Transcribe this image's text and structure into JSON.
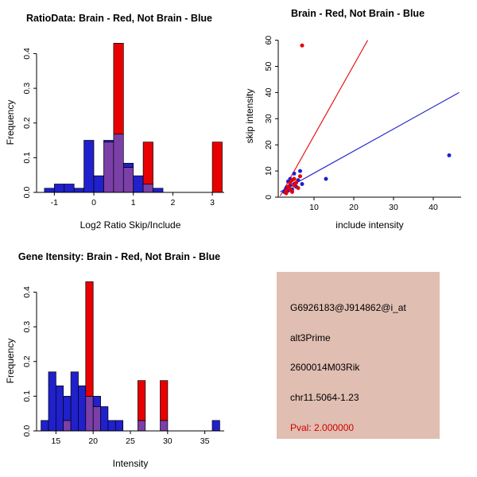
{
  "colors": {
    "red": "#E80000",
    "blue": "#2020CC",
    "overlap": "#7B3FA8",
    "background": "#FFFFFF",
    "info_box_bg": "#E0BEB1"
  },
  "chart_data": [
    {
      "id": "ratio-hist",
      "type": "bar",
      "title": "RatioData: Brain - Red, Not Brain - Blue",
      "xlabel": "Log2 Ratio Skip/Include",
      "ylabel": "Frequency",
      "xlim": [
        -1.45,
        3.3
      ],
      "ylim": [
        0,
        0.44
      ],
      "xticks": [
        -1,
        0,
        1,
        2,
        3
      ],
      "xtick_labels": [
        "-1",
        "0",
        "1",
        "2",
        "3"
      ],
      "yticks": [
        0,
        0.1,
        0.2,
        0.3,
        0.4
      ],
      "ytick_labels": [
        "0.0",
        "0.1",
        "0.2",
        "0.3",
        "0.4"
      ],
      "bin_width": 0.25,
      "series": [
        {
          "name": "Not Brain",
          "color_key": "blue",
          "bins": [
            {
              "x": -1.25,
              "v": 0.012
            },
            {
              "x": -1.0,
              "v": 0.024
            },
            {
              "x": -0.75,
              "v": 0.024
            },
            {
              "x": -0.5,
              "v": 0.012
            },
            {
              "x": -0.25,
              "v": 0.15
            },
            {
              "x": 0.0,
              "v": 0.048
            },
            {
              "x": 0.25,
              "v": 0.15
            },
            {
              "x": 0.5,
              "v": 0.168
            },
            {
              "x": 0.75,
              "v": 0.084
            },
            {
              "x": 1.0,
              "v": 0.048
            },
            {
              "x": 1.25,
              "v": 0.024
            },
            {
              "x": 1.5,
              "v": 0.012
            }
          ]
        },
        {
          "name": "Brain",
          "color_key": "red",
          "bins": [
            {
              "x": 0.25,
              "v": 0.145
            },
            {
              "x": 0.5,
              "v": 0.43
            },
            {
              "x": 0.75,
              "v": 0.072
            },
            {
              "x": 1.25,
              "v": 0.145
            },
            {
              "x": 3.0,
              "v": 0.145
            }
          ]
        }
      ]
    },
    {
      "id": "scatter",
      "type": "scatter",
      "title": "Brain - Red, Not Brain - Blue",
      "xlabel": "include intensity",
      "ylabel": "skip intensity",
      "xlim": [
        1,
        47
      ],
      "ylim": [
        0,
        62
      ],
      "xticks": [
        10,
        20,
        30,
        40
      ],
      "xtick_labels": [
        "10",
        "20",
        "30",
        "40"
      ],
      "yticks": [
        0,
        10,
        20,
        30,
        40,
        50,
        60
      ],
      "ytick_labels": [
        "0",
        "10",
        "20",
        "30",
        "40",
        "50",
        "60"
      ],
      "series": [
        {
          "name": "Not Brain",
          "color_key": "blue",
          "points": [
            [
              2.5,
              2
            ],
            [
              3,
              3.5
            ],
            [
              3.5,
              2.5
            ],
            [
              3.5,
              6
            ],
            [
              4,
              4.5
            ],
            [
              4,
              7
            ],
            [
              4.5,
              3
            ],
            [
              5,
              5
            ],
            [
              5,
              9
            ],
            [
              5.5,
              4
            ],
            [
              6,
              6.5
            ],
            [
              6.5,
              10
            ],
            [
              7,
              5
            ],
            [
              13,
              7
            ],
            [
              44,
              16
            ]
          ]
        },
        {
          "name": "Brain",
          "color_key": "red",
          "points": [
            [
              3,
              1.5
            ],
            [
              3,
              2.5
            ],
            [
              3.5,
              4
            ],
            [
              4,
              3
            ],
            [
              4,
              5.5
            ],
            [
              4.5,
              2
            ],
            [
              4.5,
              6.5
            ],
            [
              5,
              4.5
            ],
            [
              5,
              7
            ],
            [
              5.5,
              5.5
            ],
            [
              6,
              3.5
            ],
            [
              6.5,
              8
            ],
            [
              7,
              58
            ]
          ]
        }
      ],
      "lines": [
        {
          "name": "brain-fit",
          "color_key": "red",
          "x1": 1.5,
          "y1": 0.5,
          "x2": 23.5,
          "y2": 60
        },
        {
          "name": "notbrain-fit",
          "color_key": "blue",
          "x1": 1.5,
          "y1": 2,
          "x2": 46.5,
          "y2": 40
        }
      ]
    },
    {
      "id": "gene-hist",
      "type": "bar",
      "title": "Gene Itensity: Brain - Red, Not Brain - Blue",
      "xlabel": "Intensity",
      "ylabel": "Frequency",
      "xlim": [
        12.4,
        37.6
      ],
      "ylim": [
        0,
        0.44
      ],
      "xticks": [
        15,
        20,
        25,
        30,
        35
      ],
      "xtick_labels": [
        "15",
        "20",
        "25",
        "30",
        "35"
      ],
      "yticks": [
        0,
        0.1,
        0.2,
        0.3,
        0.4
      ],
      "ytick_labels": [
        "0.0",
        "0.1",
        "0.2",
        "0.3",
        "0.4"
      ],
      "bin_width": 1,
      "series": [
        {
          "name": "Not Brain",
          "color_key": "blue",
          "bins": [
            {
              "x": 13,
              "v": 0.03
            },
            {
              "x": 14,
              "v": 0.17
            },
            {
              "x": 15,
              "v": 0.13
            },
            {
              "x": 16,
              "v": 0.1
            },
            {
              "x": 17,
              "v": 0.17
            },
            {
              "x": 18,
              "v": 0.13
            },
            {
              "x": 19,
              "v": 0.1
            },
            {
              "x": 20,
              "v": 0.1
            },
            {
              "x": 21,
              "v": 0.07
            },
            {
              "x": 22,
              "v": 0.03
            },
            {
              "x": 23,
              "v": 0.03
            },
            {
              "x": 26,
              "v": 0.03
            },
            {
              "x": 29,
              "v": 0.03
            },
            {
              "x": 36,
              "v": 0.03
            }
          ]
        },
        {
          "name": "Brain",
          "color_key": "red",
          "bins": [
            {
              "x": 16,
              "v": 0.03
            },
            {
              "x": 19,
              "v": 0.43
            },
            {
              "x": 20,
              "v": 0.07
            },
            {
              "x": 26,
              "v": 0.145
            },
            {
              "x": 29,
              "v": 0.145
            }
          ]
        }
      ]
    }
  ],
  "info_panel": {
    "lines": [
      {
        "text": "G6926183@J914862@i_at",
        "color": "#000000"
      },
      {
        "text": "alt3Prime",
        "color": "#000000"
      },
      {
        "text": "2600014M03Rik",
        "color": "#000000"
      },
      {
        "text": "chr11.5064-1.23",
        "color": "#000000"
      },
      {
        "text": "Pval: 2.000000",
        "color": "#D00000"
      }
    ]
  }
}
